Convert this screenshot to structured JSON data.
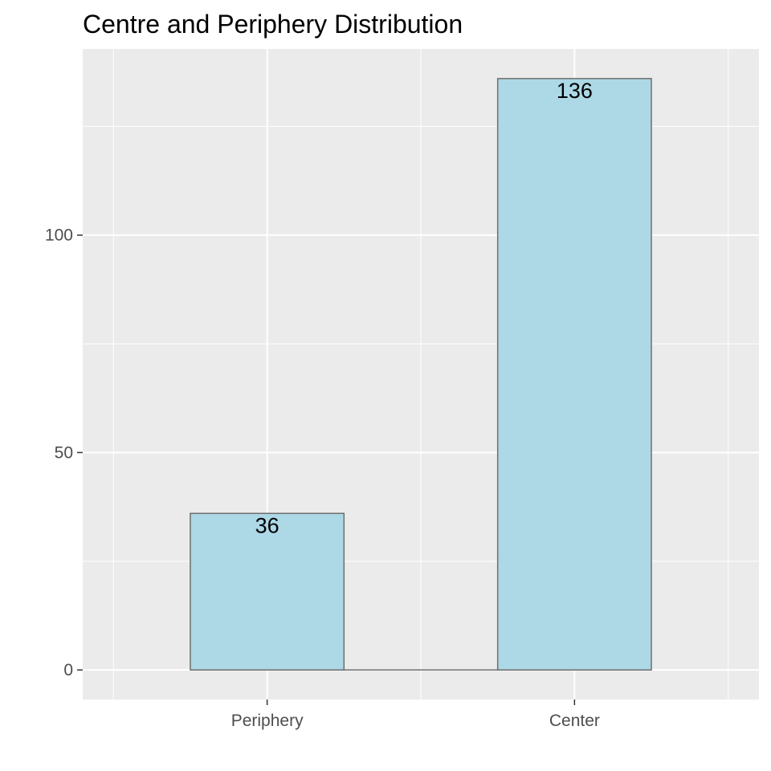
{
  "chart_data": {
    "type": "bar",
    "title": "Centre and Periphery Distribution",
    "xlabel": "",
    "ylabel": "",
    "categories": [
      "Periphery",
      "Center"
    ],
    "values": [
      36,
      136
    ],
    "data_labels": [
      "36",
      "136"
    ],
    "ylim": [
      -6.8,
      142.8
    ],
    "yticks": [
      0,
      50,
      100
    ],
    "ytick_labels": [
      "0",
      "50",
      "100"
    ],
    "grid": true,
    "legend": "none",
    "colors": {
      "panel_background": "#ebebeb",
      "grid": "#ffffff",
      "bar_fill": "#add8e6",
      "bar_outline": "#6e6e6e",
      "tick_text": "#4d4d4d",
      "title_text": "#000000"
    }
  }
}
